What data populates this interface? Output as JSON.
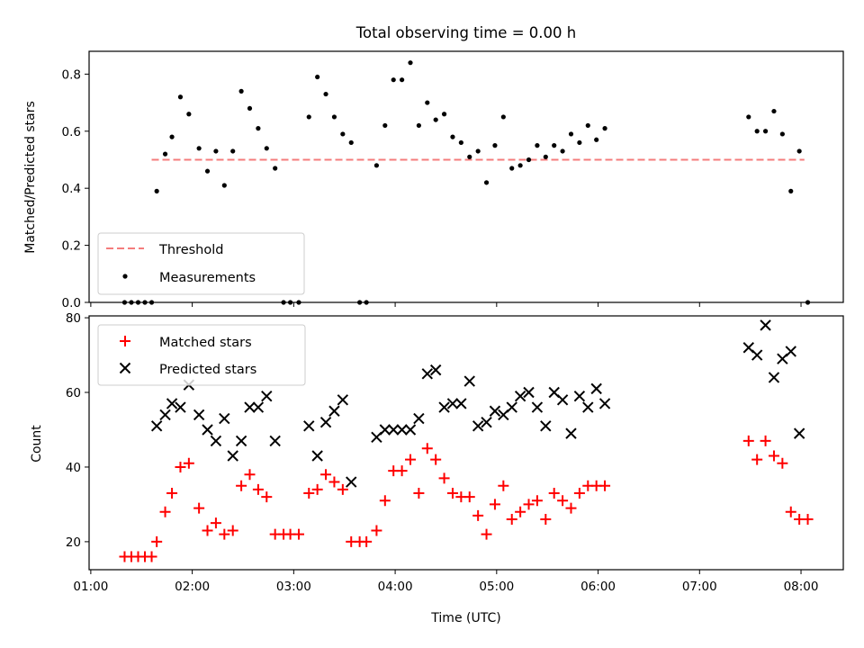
{
  "chart_data": [
    {
      "type": "scatter",
      "title": "Total observing time = 0.00 h",
      "xlabel": "",
      "ylabel": "Matched/Predicted stars",
      "xlim": [
        "00:59",
        "08:25"
      ],
      "ylim": [
        0,
        0.88
      ],
      "xticks": [
        "01:00",
        "02:00",
        "03:00",
        "04:00",
        "05:00",
        "06:00",
        "07:00",
        "08:00"
      ],
      "xticklabels_visible": false,
      "yticks": [
        0.0,
        0.2,
        0.4,
        0.6,
        0.8
      ],
      "ytick_labels": [
        "0.0",
        "0.2",
        "0.4",
        "0.6",
        "0.8"
      ],
      "grid": false,
      "legend_position": "lower-left",
      "threshold": {
        "name": "Threshold",
        "y": 0.5,
        "x_start": "01:36",
        "x_end": "08:02",
        "style": "dashed",
        "color": "#f47c7c"
      },
      "series": [
        {
          "name": "Measurements",
          "marker": "dot",
          "color": "#000000",
          "points": [
            [
              "01:20",
              0.0
            ],
            [
              "01:24",
              0.0
            ],
            [
              "01:28",
              0.0
            ],
            [
              "01:32",
              0.0
            ],
            [
              "01:36",
              0.0
            ],
            [
              "01:39",
              0.39
            ],
            [
              "01:44",
              0.52
            ],
            [
              "01:48",
              0.58
            ],
            [
              "01:53",
              0.72
            ],
            [
              "01:58",
              0.66
            ],
            [
              "02:04",
              0.54
            ],
            [
              "02:09",
              0.46
            ],
            [
              "02:14",
              0.53
            ],
            [
              "02:19",
              0.41
            ],
            [
              "02:24",
              0.53
            ],
            [
              "02:29",
              0.74
            ],
            [
              "02:34",
              0.68
            ],
            [
              "02:39",
              0.61
            ],
            [
              "02:44",
              0.54
            ],
            [
              "02:49",
              0.47
            ],
            [
              "02:54",
              0.0
            ],
            [
              "02:58",
              0.0
            ],
            [
              "03:03",
              0.0
            ],
            [
              "03:09",
              0.65
            ],
            [
              "03:14",
              0.79
            ],
            [
              "03:19",
              0.73
            ],
            [
              "03:24",
              0.65
            ],
            [
              "03:29",
              0.59
            ],
            [
              "03:34",
              0.56
            ],
            [
              "03:39",
              0.0
            ],
            [
              "03:43",
              0.0
            ],
            [
              "03:49",
              0.48
            ],
            [
              "03:54",
              0.62
            ],
            [
              "03:59",
              0.78
            ],
            [
              "04:04",
              0.78
            ],
            [
              "04:09",
              0.84
            ],
            [
              "04:14",
              0.62
            ],
            [
              "04:19",
              0.7
            ],
            [
              "04:24",
              0.64
            ],
            [
              "04:29",
              0.66
            ],
            [
              "04:34",
              0.58
            ],
            [
              "04:39",
              0.56
            ],
            [
              "04:44",
              0.51
            ],
            [
              "04:49",
              0.53
            ],
            [
              "04:54",
              0.42
            ],
            [
              "04:59",
              0.55
            ],
            [
              "05:04",
              0.65
            ],
            [
              "05:09",
              0.47
            ],
            [
              "05:14",
              0.48
            ],
            [
              "05:19",
              0.5
            ],
            [
              "05:24",
              0.55
            ],
            [
              "05:29",
              0.51
            ],
            [
              "05:34",
              0.55
            ],
            [
              "05:39",
              0.53
            ],
            [
              "05:44",
              0.59
            ],
            [
              "05:49",
              0.56
            ],
            [
              "05:54",
              0.62
            ],
            [
              "05:59",
              0.57
            ],
            [
              "06:04",
              0.61
            ],
            [
              "07:29",
              0.65
            ],
            [
              "07:34",
              0.6
            ],
            [
              "07:39",
              0.6
            ],
            [
              "07:44",
              0.67
            ],
            [
              "07:49",
              0.59
            ],
            [
              "07:54",
              0.39
            ],
            [
              "07:59",
              0.53
            ],
            [
              "08:04",
              0.0
            ]
          ]
        }
      ]
    },
    {
      "type": "scatter",
      "title": "",
      "xlabel": "Time (UTC)",
      "ylabel": "Count",
      "xlim": [
        "00:59",
        "08:25"
      ],
      "ylim": [
        12.5,
        80.5
      ],
      "xticks": [
        "01:00",
        "02:00",
        "03:00",
        "04:00",
        "05:00",
        "06:00",
        "07:00",
        "08:00"
      ],
      "xtick_labels": [
        "01:00",
        "02:00",
        "03:00",
        "04:00",
        "05:00",
        "06:00",
        "07:00",
        "08:00"
      ],
      "yticks": [
        20,
        40,
        60,
        80
      ],
      "ytick_labels": [
        "20",
        "40",
        "60",
        "80"
      ],
      "grid": false,
      "legend_position": "upper-left",
      "series": [
        {
          "name": "Matched stars",
          "marker": "plus",
          "color": "#ff0000",
          "points": [
            [
              "01:20",
              16
            ],
            [
              "01:24",
              16
            ],
            [
              "01:28",
              16
            ],
            [
              "01:32",
              16
            ],
            [
              "01:36",
              16
            ],
            [
              "01:39",
              20
            ],
            [
              "01:44",
              28
            ],
            [
              "01:48",
              33
            ],
            [
              "01:53",
              40
            ],
            [
              "01:58",
              41
            ],
            [
              "02:04",
              29
            ],
            [
              "02:09",
              23
            ],
            [
              "02:14",
              25
            ],
            [
              "02:19",
              22
            ],
            [
              "02:24",
              23
            ],
            [
              "02:29",
              35
            ],
            [
              "02:34",
              38
            ],
            [
              "02:39",
              34
            ],
            [
              "02:44",
              32
            ],
            [
              "02:49",
              22
            ],
            [
              "02:54",
              22
            ],
            [
              "02:58",
              22
            ],
            [
              "03:03",
              22
            ],
            [
              "03:09",
              33
            ],
            [
              "03:14",
              34
            ],
            [
              "03:19",
              38
            ],
            [
              "03:24",
              36
            ],
            [
              "03:29",
              34
            ],
            [
              "03:34",
              20
            ],
            [
              "03:39",
              20
            ],
            [
              "03:43",
              20
            ],
            [
              "03:49",
              23
            ],
            [
              "03:54",
              31
            ],
            [
              "03:59",
              39
            ],
            [
              "04:04",
              39
            ],
            [
              "04:09",
              42
            ],
            [
              "04:14",
              33
            ],
            [
              "04:19",
              45
            ],
            [
              "04:24",
              42
            ],
            [
              "04:29",
              37
            ],
            [
              "04:34",
              33
            ],
            [
              "04:39",
              32
            ],
            [
              "04:44",
              32
            ],
            [
              "04:49",
              27
            ],
            [
              "04:54",
              22
            ],
            [
              "04:59",
              30
            ],
            [
              "05:04",
              35
            ],
            [
              "05:09",
              26
            ],
            [
              "05:14",
              28
            ],
            [
              "05:19",
              30
            ],
            [
              "05:24",
              31
            ],
            [
              "05:29",
              26
            ],
            [
              "05:34",
              33
            ],
            [
              "05:39",
              31
            ],
            [
              "05:44",
              29
            ],
            [
              "05:49",
              33
            ],
            [
              "05:54",
              35
            ],
            [
              "05:59",
              35
            ],
            [
              "06:04",
              35
            ],
            [
              "07:29",
              47
            ],
            [
              "07:34",
              42
            ],
            [
              "07:39",
              47
            ],
            [
              "07:44",
              43
            ],
            [
              "07:49",
              41
            ],
            [
              "07:54",
              28
            ],
            [
              "07:59",
              26
            ],
            [
              "08:04",
              26
            ]
          ]
        },
        {
          "name": "Predicted stars",
          "marker": "x",
          "color": "#000000",
          "points": [
            [
              "01:39",
              51
            ],
            [
              "01:44",
              54
            ],
            [
              "01:48",
              57
            ],
            [
              "01:53",
              56
            ],
            [
              "01:58",
              62
            ],
            [
              "02:04",
              54
            ],
            [
              "02:09",
              50
            ],
            [
              "02:14",
              47
            ],
            [
              "02:19",
              53
            ],
            [
              "02:24",
              43
            ],
            [
              "02:29",
              47
            ],
            [
              "02:34",
              56
            ],
            [
              "02:39",
              56
            ],
            [
              "02:44",
              59
            ],
            [
              "02:49",
              47
            ],
            [
              "03:09",
              51
            ],
            [
              "03:14",
              43
            ],
            [
              "03:19",
              52
            ],
            [
              "03:24",
              55
            ],
            [
              "03:29",
              58
            ],
            [
              "03:34",
              36
            ],
            [
              "03:49",
              48
            ],
            [
              "03:54",
              50
            ],
            [
              "03:59",
              50
            ],
            [
              "04:04",
              50
            ],
            [
              "04:09",
              50
            ],
            [
              "04:14",
              53
            ],
            [
              "04:19",
              65
            ],
            [
              "04:24",
              66
            ],
            [
              "04:29",
              56
            ],
            [
              "04:34",
              57
            ],
            [
              "04:39",
              57
            ],
            [
              "04:44",
              63
            ],
            [
              "04:49",
              51
            ],
            [
              "04:54",
              52
            ],
            [
              "04:59",
              55
            ],
            [
              "05:04",
              54
            ],
            [
              "05:09",
              56
            ],
            [
              "05:14",
              59
            ],
            [
              "05:19",
              60
            ],
            [
              "05:24",
              56
            ],
            [
              "05:29",
              51
            ],
            [
              "05:34",
              60
            ],
            [
              "05:39",
              58
            ],
            [
              "05:44",
              49
            ],
            [
              "05:49",
              59
            ],
            [
              "05:54",
              56
            ],
            [
              "05:59",
              61
            ],
            [
              "06:04",
              57
            ],
            [
              "07:29",
              72
            ],
            [
              "07:34",
              70
            ],
            [
              "07:39",
              78
            ],
            [
              "07:44",
              64
            ],
            [
              "07:49",
              69
            ],
            [
              "07:54",
              71
            ],
            [
              "07:59",
              49
            ]
          ]
        }
      ]
    }
  ]
}
